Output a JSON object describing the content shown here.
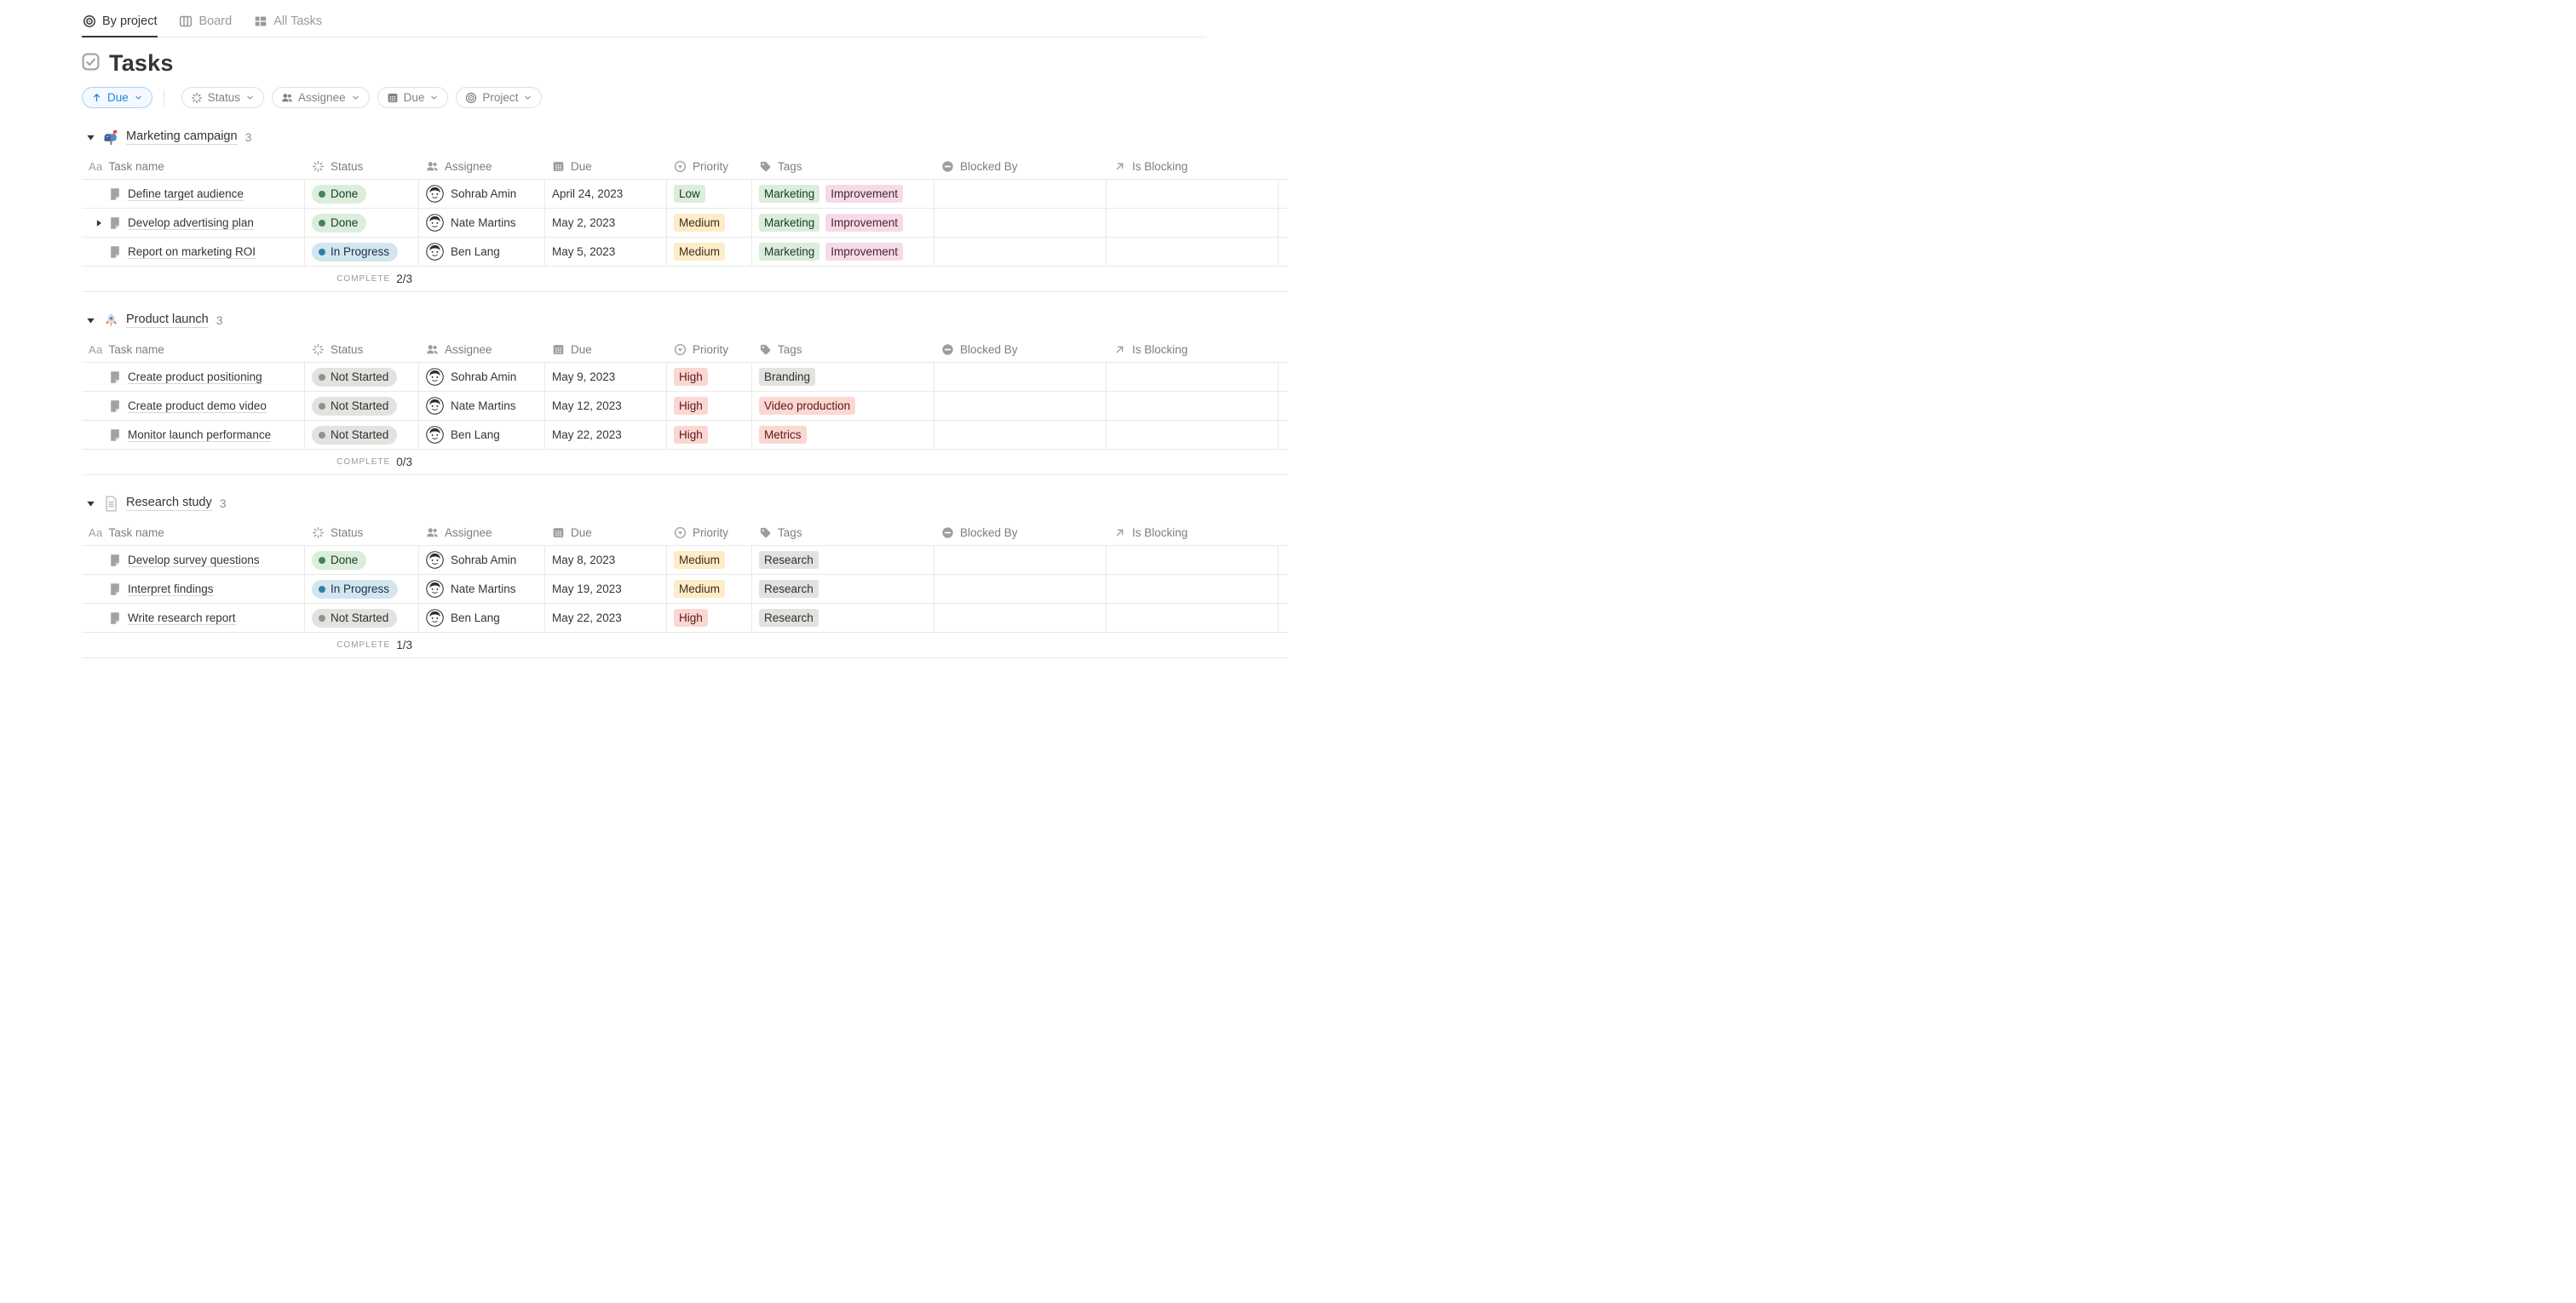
{
  "tabs": [
    {
      "label": "By project",
      "icon": "target-icon",
      "active": true
    },
    {
      "label": "Board",
      "icon": "board-icon",
      "active": false
    },
    {
      "label": "All Tasks",
      "icon": "grid-icon",
      "active": false
    }
  ],
  "page": {
    "icon": "checkbox-icon",
    "title": "Tasks"
  },
  "toolbar": {
    "sort": {
      "icon": "arrow-up-icon",
      "label": "Due"
    },
    "filters": [
      {
        "label": "Status",
        "icon": "spinner-icon"
      },
      {
        "label": "Assignee",
        "icon": "people-icon"
      },
      {
        "label": "Due",
        "icon": "calendar-icon"
      },
      {
        "label": "Project",
        "icon": "target-icon"
      }
    ]
  },
  "table": {
    "columns": [
      {
        "label": "Task name",
        "icon": "text-icon"
      },
      {
        "label": "Status",
        "icon": "spinner-icon"
      },
      {
        "label": "Assignee",
        "icon": "people-icon"
      },
      {
        "label": "Due",
        "icon": "calendar-icon"
      },
      {
        "label": "Priority",
        "icon": "priority-icon"
      },
      {
        "label": "Tags",
        "icon": "tag-icon"
      },
      {
        "label": "Blocked By",
        "icon": "blocked-icon"
      },
      {
        "label": "Is Blocking",
        "icon": "arrow-upright-icon"
      }
    ]
  },
  "footer_label": "COMPLETE",
  "groups": [
    {
      "icon": "mailbox-icon",
      "name": "Marketing campaign",
      "count": "3",
      "complete": "2/3",
      "rows": [
        {
          "task": "Define target audience",
          "expand": false,
          "status": {
            "label": "Done",
            "color": "green"
          },
          "assignee": "Sohrab Amin",
          "due": "April 24, 2023",
          "priority": {
            "label": "Low",
            "color": "green"
          },
          "tags": [
            {
              "label": "Marketing",
              "color": "green"
            },
            {
              "label": "Improvement",
              "color": "pink"
            }
          ],
          "blocked_by": "",
          "is_blocking": ""
        },
        {
          "task": "Develop advertising plan",
          "expand": true,
          "status": {
            "label": "Done",
            "color": "green"
          },
          "assignee": "Nate Martins",
          "due": "May 2, 2023",
          "priority": {
            "label": "Medium",
            "color": "yellow"
          },
          "tags": [
            {
              "label": "Marketing",
              "color": "green"
            },
            {
              "label": "Improvement",
              "color": "pink"
            }
          ],
          "blocked_by": "",
          "is_blocking": ""
        },
        {
          "task": "Report on marketing ROI",
          "expand": false,
          "status": {
            "label": "In Progress",
            "color": "blue"
          },
          "assignee": "Ben Lang",
          "due": "May 5, 2023",
          "priority": {
            "label": "Medium",
            "color": "yellow"
          },
          "tags": [
            {
              "label": "Marketing",
              "color": "green"
            },
            {
              "label": "Improvement",
              "color": "pink"
            }
          ],
          "blocked_by": "",
          "is_blocking": ""
        }
      ]
    },
    {
      "icon": "rocket-icon",
      "name": "Product launch",
      "count": "3",
      "complete": "0/3",
      "rows": [
        {
          "task": "Create product positioning",
          "expand": false,
          "status": {
            "label": "Not Started",
            "color": "gray"
          },
          "assignee": "Sohrab Amin",
          "due": "May 9, 2023",
          "priority": {
            "label": "High",
            "color": "red"
          },
          "tags": [
            {
              "label": "Branding",
              "color": "gray"
            }
          ],
          "blocked_by": "",
          "is_blocking": ""
        },
        {
          "task": "Create product demo video",
          "expand": false,
          "status": {
            "label": "Not Started",
            "color": "gray"
          },
          "assignee": "Nate Martins",
          "due": "May 12, 2023",
          "priority": {
            "label": "High",
            "color": "red"
          },
          "tags": [
            {
              "label": "Video production",
              "color": "red"
            }
          ],
          "blocked_by": "",
          "is_blocking": ""
        },
        {
          "task": "Monitor launch performance",
          "expand": false,
          "status": {
            "label": "Not Started",
            "color": "gray"
          },
          "assignee": "Ben Lang",
          "due": "May 22, 2023",
          "priority": {
            "label": "High",
            "color": "red"
          },
          "tags": [
            {
              "label": "Metrics",
              "color": "red"
            }
          ],
          "blocked_by": "",
          "is_blocking": ""
        }
      ]
    },
    {
      "icon": "document-icon",
      "name": "Research study",
      "count": "3",
      "complete": "1/3",
      "rows": [
        {
          "task": "Develop survey questions",
          "expand": false,
          "status": {
            "label": "Done",
            "color": "green"
          },
          "assignee": "Sohrab Amin",
          "due": "May 8, 2023",
          "priority": {
            "label": "Medium",
            "color": "yellow"
          },
          "tags": [
            {
              "label": "Research",
              "color": "gray"
            }
          ],
          "blocked_by": "",
          "is_blocking": ""
        },
        {
          "task": "Interpret findings",
          "expand": false,
          "status": {
            "label": "In Progress",
            "color": "blue"
          },
          "assignee": "Nate Martins",
          "due": "May 19, 2023",
          "priority": {
            "label": "Medium",
            "color": "yellow"
          },
          "tags": [
            {
              "label": "Research",
              "color": "gray"
            }
          ],
          "blocked_by": "",
          "is_blocking": ""
        },
        {
          "task": "Write research report",
          "expand": false,
          "status": {
            "label": "Not Started",
            "color": "gray"
          },
          "assignee": "Ben Lang",
          "due": "May 22, 2023",
          "priority": {
            "label": "High",
            "color": "red"
          },
          "tags": [
            {
              "label": "Research",
              "color": "gray"
            }
          ],
          "blocked_by": "",
          "is_blocking": ""
        }
      ]
    }
  ],
  "colors": {
    "green": {
      "bg": "#dbeddb",
      "text": "#1c3829",
      "dot": "#448361"
    },
    "blue": {
      "bg": "#d3e5ef",
      "text": "#183347",
      "dot": "#337ea9"
    },
    "gray": {
      "bg": "#e3e2e0",
      "text": "#32302c",
      "dot": "#91918e"
    },
    "yellow": {
      "bg": "#fdecc8",
      "text": "#402c1b",
      "dot": "#c29343"
    },
    "red": {
      "bg": "#fbd7d3",
      "text": "#5d1715",
      "dot": "#c4554d"
    },
    "pink": {
      "bg": "#f5dbe7",
      "text": "#4c2337",
      "dot": "#c14c8a"
    },
    "accent_blue": "#2383e2"
  }
}
